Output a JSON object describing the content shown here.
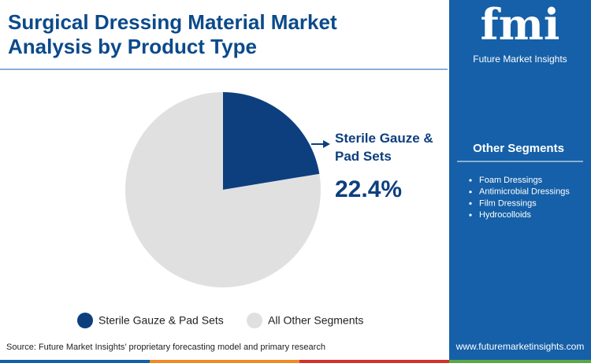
{
  "chart_data": {
    "type": "pie",
    "title": "Surgical Dressing Material Market Analysis by Product Type",
    "categories": [
      "Sterile Gauze & Pad Sets",
      "All Other Segments"
    ],
    "values": [
      22.4,
      77.6
    ],
    "value_labels": [
      "22.4%",
      null
    ],
    "colors": [
      "#0d3f7f",
      "#e0e0e0"
    ],
    "legend": "bottom"
  },
  "side_panel": {
    "title": "Other Segments",
    "items": [
      "Foam Dressings",
      "Antimicrobial Dressings",
      "Film Dressings",
      "Hydrocolloids"
    ]
  },
  "brand": {
    "logo": "fmi",
    "name": "Future Market Insights"
  },
  "source": "Source: Future Market Insights’ proprietary forecasting model and primary research",
  "website": "www.futuremarketinsights.com"
}
